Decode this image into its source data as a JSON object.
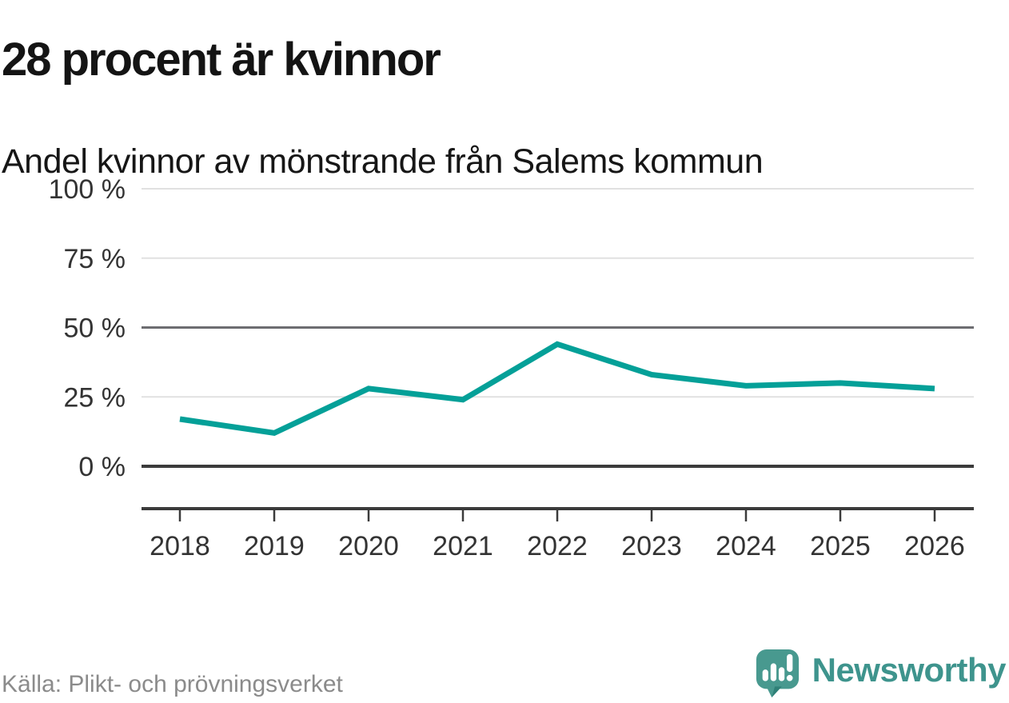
{
  "header": {
    "title": "28 procent är kvinnor",
    "subtitle": "Andel kvinnor av mönstrande från Salems kommun"
  },
  "chart_data": {
    "type": "line",
    "x": [
      "2018",
      "2019",
      "2020",
      "2021",
      "2022",
      "2023",
      "2024",
      "2025",
      "2026"
    ],
    "series": [
      {
        "name": "Andel kvinnor av mönstrande",
        "values": [
          17,
          12,
          28,
          24,
          44,
          33,
          29,
          30,
          28
        ]
      }
    ],
    "title": "28 procent är kvinnor",
    "subtitle": "Andel kvinnor av mönstrande från Salems kommun",
    "xlabel": "",
    "ylabel": "",
    "ylim": [
      0,
      100
    ],
    "yticks": [
      0,
      25,
      50,
      75,
      100
    ],
    "ytick_suffix": " %",
    "grid": "horizontal",
    "legend": "none",
    "line_color": "#04a098"
  },
  "footer": {
    "source": "Källa: Plikt- och prövningsverket",
    "brand": "Newsworthy"
  },
  "colors": {
    "line": "#04a098",
    "grid_light": "#e1e1e1",
    "grid_mid": "#6d6d71",
    "grid_zero": "#3b3b3b",
    "axis": "#3b3b3b",
    "tick_text": "#333333",
    "title_text": "#141414",
    "source_text": "#8b8b8b",
    "brand_teal": "#3e948d",
    "logo_fill": "#48998f",
    "logo_fold": "#2f8077"
  },
  "icons": {
    "brand_logo": "newsworthy-speech-bubble-bar-chart-icon"
  }
}
